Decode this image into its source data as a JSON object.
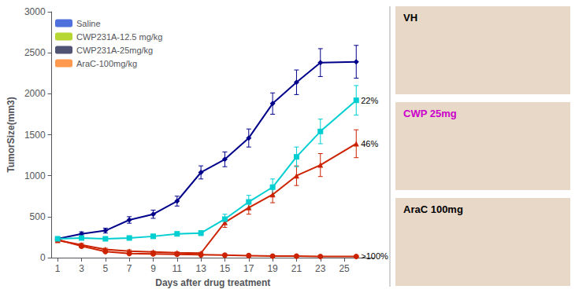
{
  "chart_data": {
    "type": "line",
    "xlabel": "Days after drug treatment",
    "ylabel": "TumorSize(mm3)",
    "x": [
      1,
      3,
      5,
      7,
      9,
      11,
      13,
      15,
      17,
      19,
      21,
      23,
      26
    ],
    "xlim": [
      0.5,
      27.5
    ],
    "xticks": [
      1,
      3,
      5,
      7,
      9,
      11,
      13,
      15,
      17,
      19,
      21,
      23,
      25
    ],
    "ylim": [
      0,
      3000
    ],
    "yticks": [
      0,
      500,
      1000,
      1500,
      2000,
      2500,
      3000
    ],
    "grid": false,
    "legend": "upper left",
    "series": [
      {
        "name": "Saline",
        "color": "#00008B",
        "marker": "diamond",
        "line_style": "solid",
        "values": [
          230,
          290,
          330,
          460,
          530,
          690,
          1040,
          1200,
          1460,
          1880,
          2140,
          2380,
          2390
        ],
        "errors": [
          20,
          25,
          30,
          40,
          50,
          60,
          80,
          90,
          110,
          130,
          150,
          170,
          200
        ]
      },
      {
        "name": "CWP231A-12.5 mg/kg",
        "color": "#CC2200",
        "marker": "triangle",
        "line_style": "solid",
        "values": [
          210,
          155,
          100,
          80,
          70,
          60,
          55,
          430,
          610,
          770,
          1000,
          1130,
          1390
        ],
        "errors": [
          20,
          20,
          15,
          15,
          10,
          10,
          10,
          60,
          80,
          100,
          120,
          140,
          170
        ],
        "annotation": "46%"
      },
      {
        "name": "CWP231A-25mg/kg",
        "color": "#CC2200",
        "marker": "circle",
        "line_style": "solid",
        "values": [
          220,
          140,
          75,
          50,
          45,
          40,
          35,
          30,
          25,
          20,
          18,
          15,
          15
        ],
        "errors": [
          20,
          15,
          10,
          8,
          7,
          6,
          5,
          5,
          4,
          4,
          3,
          3,
          3
        ],
        "annotation": ">100%"
      },
      {
        "name": "AraC-100mg/kg",
        "color": "#00CED1",
        "marker": "square",
        "line_style": "solid",
        "values": [
          230,
          240,
          230,
          240,
          260,
          290,
          300,
          470,
          680,
          860,
          1230,
          1540,
          1920
        ],
        "errors": [
          20,
          20,
          20,
          20,
          25,
          25,
          30,
          60,
          80,
          100,
          120,
          150,
          180
        ],
        "annotation": "22%"
      }
    ],
    "annotations": [
      {
        "text": "VH",
        "color": "#000000"
      },
      {
        "text": "CWP 25mg",
        "color": "#CC00CC"
      },
      {
        "text": "AraC 100mg",
        "color": "#000000"
      }
    ]
  }
}
